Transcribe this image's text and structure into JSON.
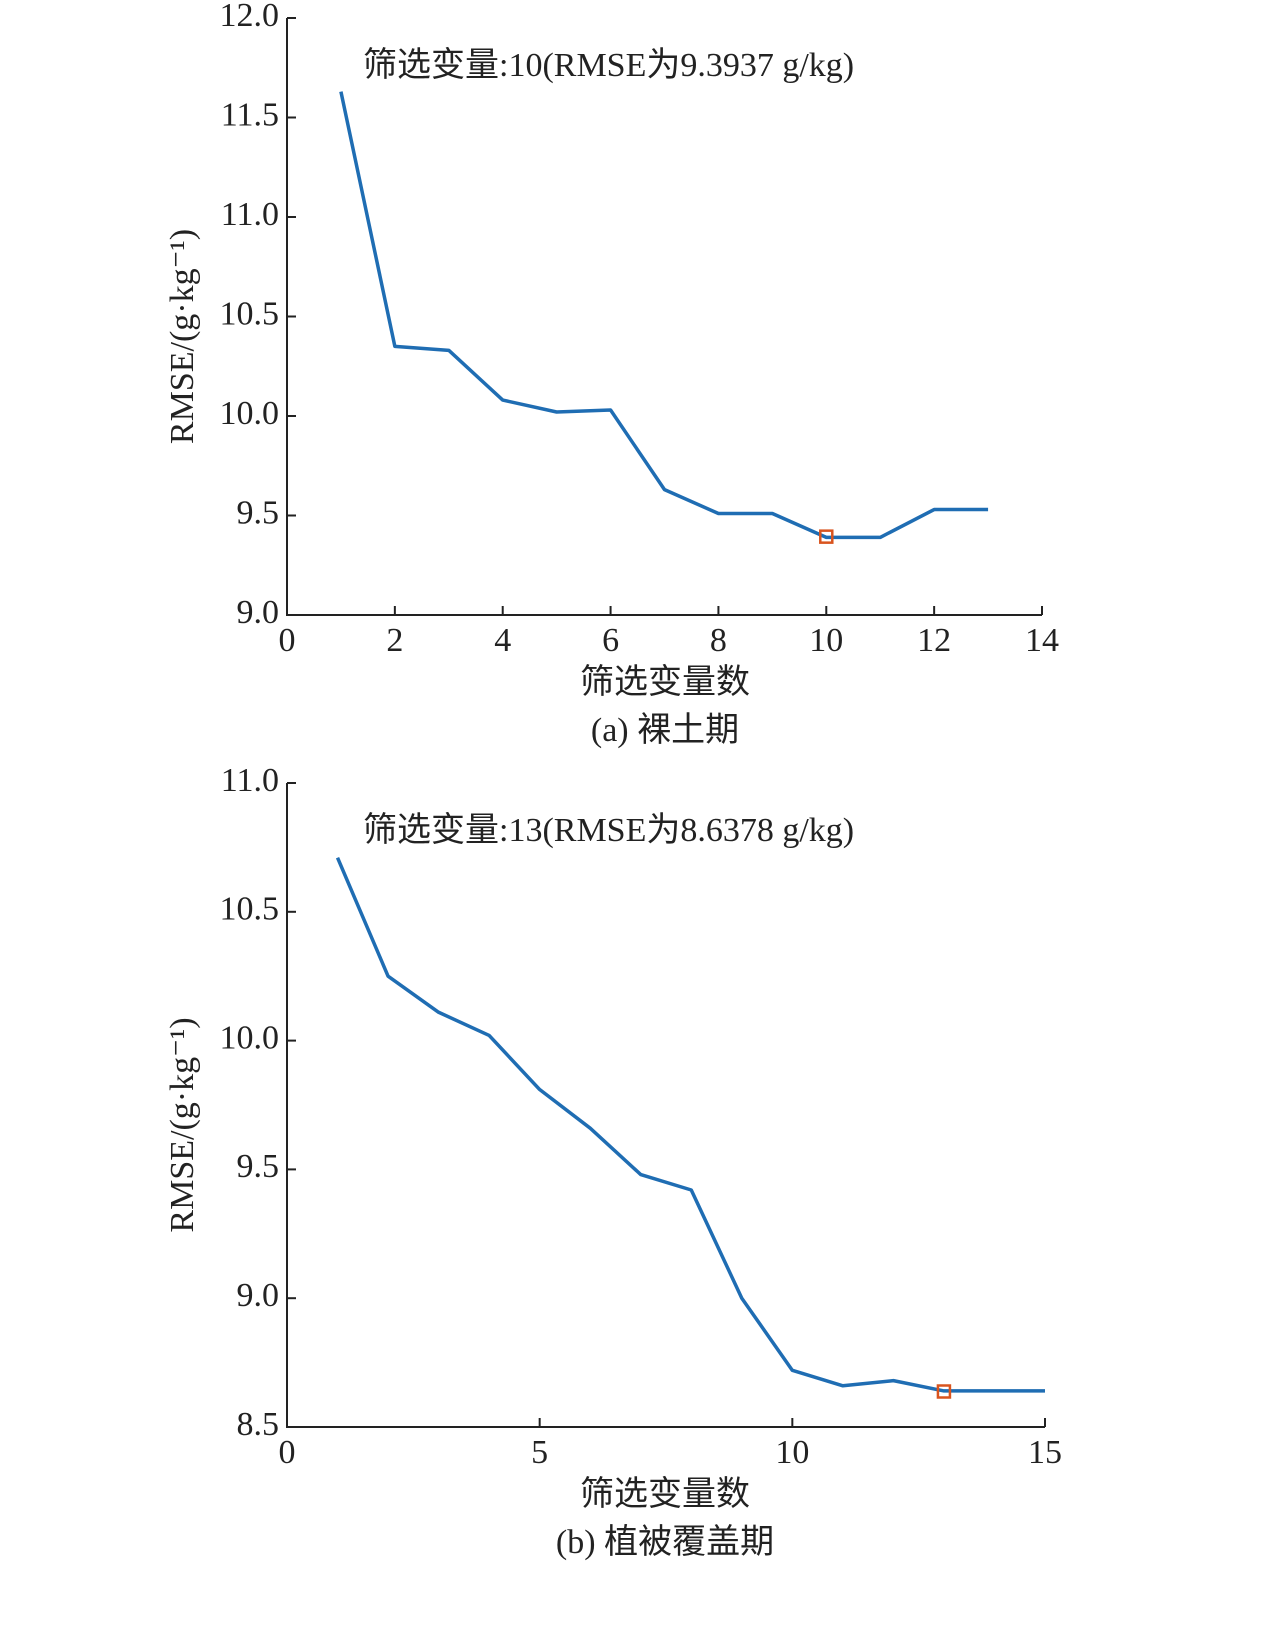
{
  "chart_data": [
    {
      "type": "line",
      "annotation": "筛选变量:10(RMSE为9.3937 g/kg)",
      "xlabel": "筛选变量数",
      "ylabel": "RMSE/(g·kg⁻¹)",
      "caption": "(a) 裸土期",
      "x": [
        1,
        2,
        3,
        4,
        5,
        6,
        7,
        8,
        9,
        10,
        11,
        12,
        13
      ],
      "series": [
        {
          "color": "#1f6db3",
          "values": [
            11.63,
            10.35,
            10.33,
            10.08,
            10.02,
            10.03,
            9.63,
            9.51,
            9.51,
            9.39,
            9.39,
            9.53,
            9.53
          ]
        }
      ],
      "marker": {
        "x": 10,
        "y": 9.3937,
        "color": "#d9541e"
      },
      "xlim": [
        0,
        14
      ],
      "xticks": [
        0,
        2,
        4,
        6,
        8,
        10,
        12,
        14
      ],
      "ylim": [
        9,
        12
      ],
      "yticks": [
        {
          "value": 9,
          "label": "9.0"
        },
        9.5,
        {
          "value": 10,
          "label": "10.0"
        },
        10.5,
        {
          "value": 11,
          "label": "11.0"
        },
        11.5,
        {
          "value": 12,
          "label": "12.0"
        }
      ]
    },
    {
      "type": "line",
      "annotation": "筛选变量:13(RMSE为8.6378 g/kg)",
      "xlabel": "筛选变量数",
      "ylabel": "RMSE/(g·kg⁻¹)",
      "caption": "(b) 植被覆盖期",
      "x": [
        1,
        2,
        3,
        4,
        5,
        6,
        7,
        8,
        9,
        10,
        11,
        12,
        13,
        14,
        15
      ],
      "series": [
        {
          "color": "#1f6db3",
          "values": [
            10.71,
            10.25,
            10.11,
            10.02,
            9.81,
            9.66,
            9.48,
            9.42,
            9.0,
            8.72,
            8.66,
            8.68,
            8.64,
            8.64,
            8.64
          ]
        }
      ],
      "marker": {
        "x": 13,
        "y": 8.6378,
        "color": "#d9541e"
      },
      "xlim": [
        0,
        15
      ],
      "xticks": [
        0,
        5,
        10,
        15
      ],
      "ylim": [
        8.5,
        11
      ],
      "yticks": [
        8.5,
        {
          "value": 9,
          "label": "9.0"
        },
        9.5,
        {
          "value": 10,
          "label": "10.0"
        },
        10.5,
        {
          "value": 11,
          "label": "11.0"
        }
      ]
    }
  ]
}
